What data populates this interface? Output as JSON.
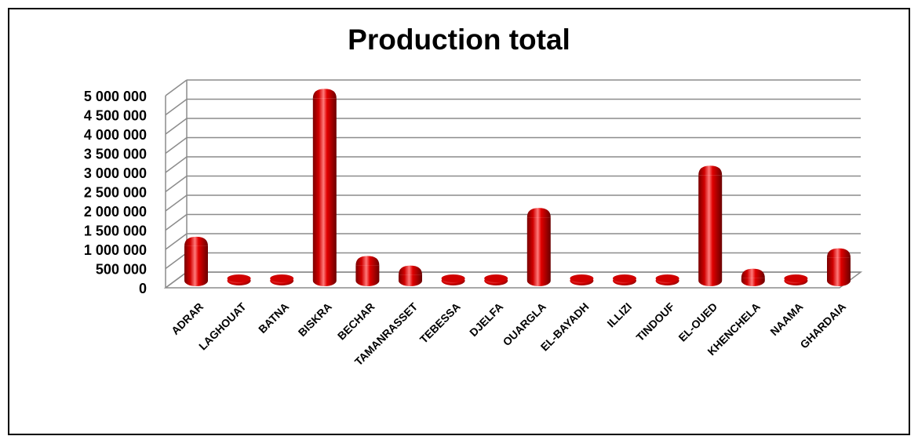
{
  "chart_data": {
    "type": "bar",
    "title": "Production total",
    "xlabel": "",
    "ylabel": "",
    "ylim": [
      0,
      5000000
    ],
    "y_ticks": [
      "0",
      "500 000",
      "1 000 000",
      "1 500 000",
      "2 000 000",
      "2 500 000",
      "3 000 000",
      "3 500 000",
      "4 000 000",
      "4 500 000",
      "5 000 000"
    ],
    "y_tick_values": [
      0,
      500000,
      1000000,
      1500000,
      2000000,
      2500000,
      3000000,
      3500000,
      4000000,
      4500000,
      5000000
    ],
    "categories": [
      "ADRAR",
      "LAGHOUAT",
      "BATNA",
      "BISKRA",
      "BECHAR",
      "TAMANRASSET",
      "TEBESSA",
      "DJELFA",
      "OUARGLA",
      "EL-BAYADH",
      "ILLIZI",
      "TINDOUF",
      "EL-OUED",
      "KHENCHELA",
      "NAAMA",
      "GHARDAIA"
    ],
    "values": [
      900000,
      5000,
      4000,
      4750000,
      400000,
      150000,
      3000,
      3000,
      1650000,
      3000,
      2000,
      2000,
      2750000,
      70000,
      20000,
      600000
    ],
    "grid": true,
    "style": "3d-cylinder",
    "bar_color": "#d00000",
    "bar_dark_color": "#7a0000",
    "bar_light_color": "#ff6b6b",
    "grid_color": "#8c8c8c"
  }
}
